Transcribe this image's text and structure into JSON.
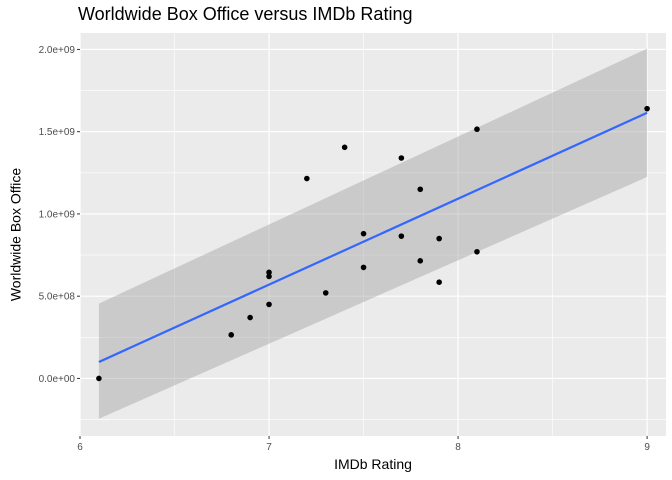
{
  "chart_data": {
    "type": "scatter",
    "title": "Worldwide Box Office versus IMDb Rating",
    "xlabel": "IMDb Rating",
    "ylabel": "Worldwide Box Office",
    "xlim": [
      6.0,
      9.1
    ],
    "ylim": [
      -350000000.0,
      2100000000.0
    ],
    "x_ticks": [
      6,
      7,
      8,
      9
    ],
    "x_tick_labels": [
      "6",
      "7",
      "8",
      "9"
    ],
    "y_ticks": [
      0,
      500000000,
      1000000000,
      1500000000,
      2000000000
    ],
    "y_tick_labels": [
      "0.0e+00",
      "5.0e+08",
      "1.0e+09",
      "1.5e+09",
      "2.0e+09"
    ],
    "grid": true,
    "points": [
      {
        "x": 6.1,
        "y": 0
      },
      {
        "x": 6.8,
        "y": 265000000
      },
      {
        "x": 6.9,
        "y": 370000000
      },
      {
        "x": 7.0,
        "y": 450000000
      },
      {
        "x": 7.0,
        "y": 620000000
      },
      {
        "x": 7.0,
        "y": 645000000
      },
      {
        "x": 7.2,
        "y": 1215000000
      },
      {
        "x": 7.3,
        "y": 520000000
      },
      {
        "x": 7.4,
        "y": 1405000000
      },
      {
        "x": 7.5,
        "y": 675000000
      },
      {
        "x": 7.5,
        "y": 880000000
      },
      {
        "x": 7.7,
        "y": 865000000
      },
      {
        "x": 7.7,
        "y": 1340000000
      },
      {
        "x": 7.8,
        "y": 715000000
      },
      {
        "x": 7.8,
        "y": 1150000000
      },
      {
        "x": 7.9,
        "y": 585000000
      },
      {
        "x": 7.9,
        "y": 850000000
      },
      {
        "x": 8.1,
        "y": 770000000
      },
      {
        "x": 8.1,
        "y": 1515000000
      },
      {
        "x": 9.0,
        "y": 1640000000
      }
    ],
    "trend": {
      "method": "linear",
      "x": [
        6.1,
        9.0
      ],
      "y": [
        100000000,
        1615000000
      ],
      "color": "#3366FF"
    },
    "confidence_band": {
      "x": [
        6.1,
        9.0
      ],
      "lower": [
        -245000000,
        1225000000
      ],
      "upper": [
        455000000,
        2005000000
      ],
      "color": "#999999",
      "opacity": 0.4
    },
    "colors": {
      "panel": "#EBEBEB",
      "grid": "#FFFFFF",
      "point": "#000000"
    }
  }
}
